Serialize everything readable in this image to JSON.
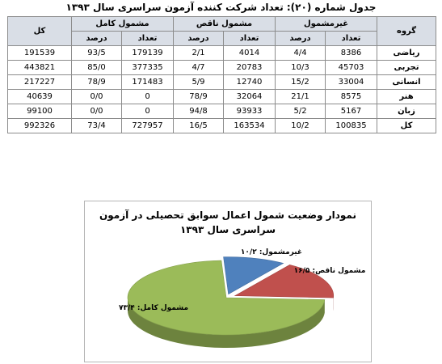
{
  "table": {
    "title": "جدول شماره (۲۰): تعداد شرکت کننده آزمون سراسری سال ۱۳۹۳",
    "col_group": "گروه",
    "col_total": "کل",
    "groups": [
      "غیرمشمول",
      "مشمول ناقص",
      "مشمول کامل"
    ],
    "sub_count": "تعداد",
    "sub_percent": "درصد",
    "rows": [
      {
        "name": "ریاضی",
        "g1_count": "8386",
        "g1_pct": "4/4",
        "g2_count": "4014",
        "g2_pct": "2/1",
        "g3_count": "179139",
        "g3_pct": "93/5",
        "total": "191539"
      },
      {
        "name": "تجربی",
        "g1_count": "45703",
        "g1_pct": "10/3",
        "g2_count": "20783",
        "g2_pct": "4/7",
        "g3_count": "377335",
        "g3_pct": "85/0",
        "total": "443821"
      },
      {
        "name": "انسانی",
        "g1_count": "33004",
        "g1_pct": "15/2",
        "g2_count": "12740",
        "g2_pct": "5/9",
        "g3_count": "171483",
        "g3_pct": "78/9",
        "total": "217227"
      },
      {
        "name": "هنر",
        "g1_count": "8575",
        "g1_pct": "21/1",
        "g2_count": "32064",
        "g2_pct": "78/9",
        "g3_count": "0",
        "g3_pct": "0/0",
        "total": "40639"
      },
      {
        "name": "زبان",
        "g1_count": "5167",
        "g1_pct": "5/2",
        "g2_count": "93933",
        "g2_pct": "94/8",
        "g3_count": "0",
        "g3_pct": "0/0",
        "total": "99100"
      },
      {
        "name": "کل",
        "g1_count": "100835",
        "g1_pct": "10/2",
        "g2_count": "163534",
        "g2_pct": "16/5",
        "g3_count": "727957",
        "g3_pct": "73/4",
        "total": "992326"
      }
    ]
  },
  "chart_data": {
    "type": "pie",
    "title": "نمودار وضعیت شمول اعمال سوابق تحصیلی در آزمون سراسری سال ۱۳۹۳",
    "slices": [
      {
        "label": "غیرمشمول: ۱۰/۲",
        "value": 10.2,
        "color": "#4f81bd"
      },
      {
        "label": "مشمول ناقص: ۱۶/۵",
        "value": 16.5,
        "color": "#c0504d"
      },
      {
        "label": "مشمول کامل: ۷۳/۴",
        "value": 73.4,
        "color": "#9bbb59"
      }
    ]
  }
}
